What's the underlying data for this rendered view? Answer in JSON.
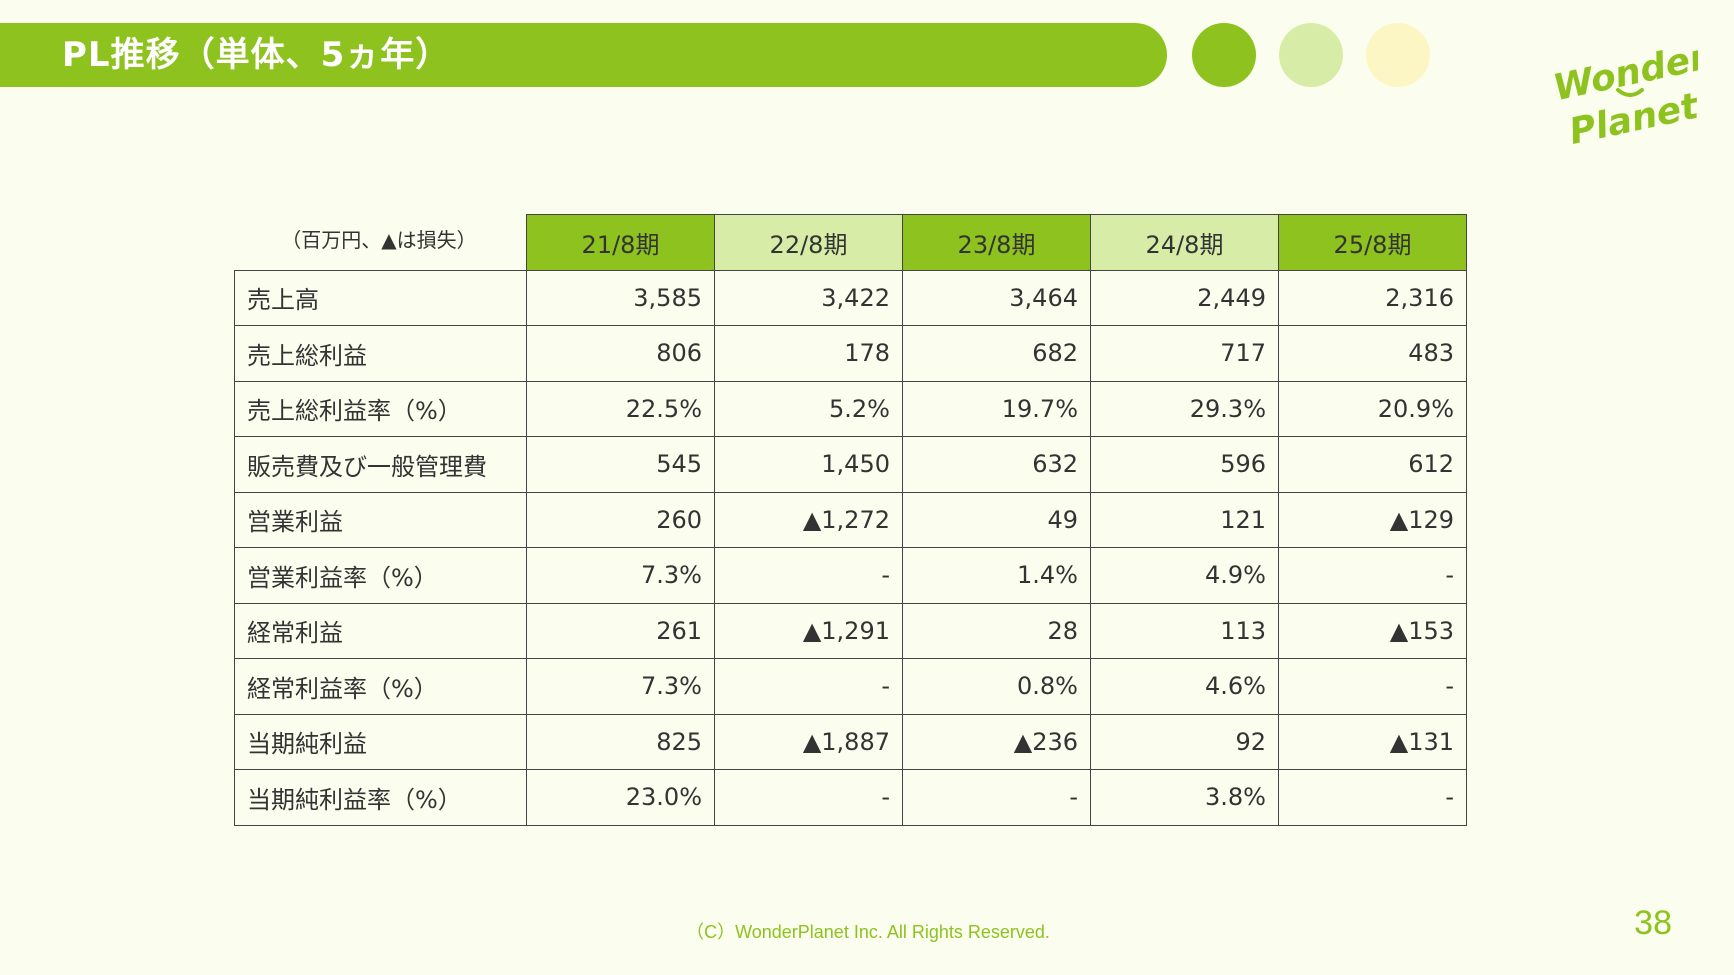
{
  "title": "PL推移（単体、5ヵ年）",
  "unit_note": "（百万円、▲は損失）",
  "colors": {
    "accent": "#8dc21f",
    "light": "#d7eda7",
    "cream": "#fcf6c5"
  },
  "logo": {
    "line1": "Wonder",
    "line2": "Planet"
  },
  "table": {
    "periods": [
      "21/8期",
      "22/8期",
      "23/8期",
      "24/8期",
      "25/8期"
    ],
    "rows": [
      {
        "label": "売上高",
        "values": [
          "3,585",
          "3,422",
          "3,464",
          "2,449",
          "2,316"
        ]
      },
      {
        "label": "売上総利益",
        "values": [
          "806",
          "178",
          "682",
          "717",
          "483"
        ]
      },
      {
        "label": "売上総利益率（%）",
        "values": [
          "22.5%",
          "5.2%",
          "19.7%",
          "29.3%",
          "20.9%"
        ]
      },
      {
        "label": "販売費及び一般管理費",
        "values": [
          "545",
          "1,450",
          "632",
          "596",
          "612"
        ]
      },
      {
        "label": "営業利益",
        "values": [
          "260",
          "▲1,272",
          "49",
          "121",
          "▲129"
        ]
      },
      {
        "label": "営業利益率（%）",
        "values": [
          "7.3%",
          "-",
          "1.4%",
          "4.9%",
          "-"
        ]
      },
      {
        "label": "経常利益",
        "values": [
          "261",
          "▲1,291",
          "28",
          "113",
          "▲153"
        ]
      },
      {
        "label": "経常利益率（%）",
        "values": [
          "7.3%",
          "-",
          "0.8%",
          "4.6%",
          "-"
        ]
      },
      {
        "label": "当期純利益",
        "values": [
          "825",
          "▲1,887",
          "▲236",
          "92",
          "▲131"
        ]
      },
      {
        "label": "当期純利益率（%）",
        "values": [
          "23.0%",
          "-",
          "-",
          "3.8%",
          "-"
        ]
      }
    ]
  },
  "footer": {
    "copyright": "（C）WonderPlanet Inc.  All Rights Reserved.",
    "page_number": "38"
  }
}
